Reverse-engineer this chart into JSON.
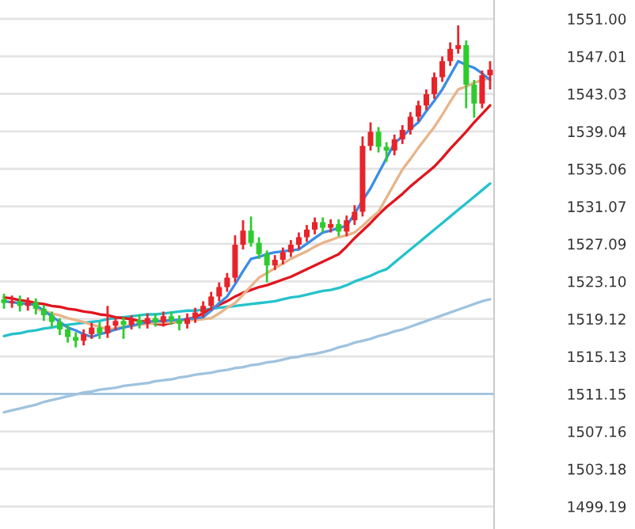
{
  "chart_data": {
    "type": "candlestick",
    "categories": [
      null,
      null,
      null,
      null,
      null,
      null,
      null,
      null,
      null,
      null,
      null,
      null,
      null,
      null,
      null,
      null,
      null,
      null,
      null,
      null,
      null,
      null,
      null,
      null,
      null,
      null,
      null,
      null,
      null,
      null,
      null,
      null,
      null,
      null,
      null,
      null,
      null,
      null,
      null,
      null,
      null,
      null,
      null,
      null,
      null,
      null,
      null,
      null,
      null,
      null,
      null,
      null,
      null,
      null,
      null,
      null,
      null,
      null,
      null,
      null,
      null,
      null
    ],
    "ohlc": [
      [
        1521.2,
        1521.8,
        1520.2,
        1520.8
      ],
      [
        1520.8,
        1521.6,
        1520.3,
        1521.0
      ],
      [
        1521.0,
        1521.6,
        1519.9,
        1520.5
      ],
      [
        1520.5,
        1521.4,
        1520.0,
        1520.9
      ],
      [
        1520.9,
        1521.3,
        1519.6,
        1520.2
      ],
      [
        1520.2,
        1520.6,
        1518.9,
        1519.5
      ],
      [
        1519.5,
        1519.9,
        1518.2,
        1518.8
      ],
      [
        1518.8,
        1519.2,
        1517.4,
        1518.0
      ],
      [
        1518.0,
        1518.5,
        1516.6,
        1517.2
      ],
      [
        1517.2,
        1517.7,
        1516.1,
        1516.8
      ],
      [
        1516.8,
        1518.0,
        1516.3,
        1517.5
      ],
      [
        1517.5,
        1518.7,
        1517.0,
        1518.2
      ],
      [
        1518.2,
        1518.8,
        1517.0,
        1517.6
      ],
      [
        1517.6,
        1520.5,
        1517.1,
        1518.4
      ],
      [
        1518.4,
        1519.4,
        1517.9,
        1518.9
      ],
      [
        1518.9,
        1519.3,
        1517.0,
        1518.5
      ],
      [
        1518.5,
        1519.5,
        1518.0,
        1519.0
      ],
      [
        1519.0,
        1519.6,
        1518.1,
        1518.6
      ],
      [
        1518.6,
        1519.7,
        1518.1,
        1519.2
      ],
      [
        1519.2,
        1519.7,
        1518.3,
        1518.8
      ],
      [
        1518.8,
        1519.9,
        1518.3,
        1519.4
      ],
      [
        1519.4,
        1519.9,
        1518.5,
        1519.0
      ],
      [
        1519.0,
        1519.5,
        1517.9,
        1518.6
      ],
      [
        1518.6,
        1519.7,
        1518.1,
        1519.2
      ],
      [
        1519.2,
        1520.3,
        1518.7,
        1519.8
      ],
      [
        1519.8,
        1521.0,
        1519.3,
        1520.5
      ],
      [
        1520.5,
        1522.0,
        1520.0,
        1521.5
      ],
      [
        1521.5,
        1523.0,
        1521.0,
        1522.5
      ],
      [
        1522.5,
        1524.0,
        1522.0,
        1523.5
      ],
      [
        1523.5,
        1528.0,
        1523.0,
        1527.0
      ],
      [
        1527.0,
        1529.6,
        1526.5,
        1528.5
      ],
      [
        1528.5,
        1530.0,
        1526.8,
        1527.2
      ],
      [
        1527.2,
        1527.8,
        1525.5,
        1526.0
      ],
      [
        1526.0,
        1526.4,
        1523.0,
        1524.8
      ],
      [
        1524.8,
        1525.9,
        1524.3,
        1525.4
      ],
      [
        1525.4,
        1526.7,
        1524.9,
        1526.2
      ],
      [
        1526.2,
        1527.5,
        1525.7,
        1527.0
      ],
      [
        1527.0,
        1528.3,
        1526.5,
        1527.8
      ],
      [
        1527.8,
        1529.1,
        1527.3,
        1528.6
      ],
      [
        1528.6,
        1529.9,
        1528.1,
        1529.4
      ],
      [
        1529.4,
        1529.9,
        1528.3,
        1528.8
      ],
      [
        1528.8,
        1529.7,
        1528.3,
        1529.2
      ],
      [
        1529.2,
        1529.7,
        1527.9,
        1528.4
      ],
      [
        1528.4,
        1530.1,
        1527.9,
        1529.6
      ],
      [
        1529.6,
        1531.2,
        1529.1,
        1530.5
      ],
      [
        1530.5,
        1538.5,
        1530.0,
        1537.5
      ],
      [
        1537.5,
        1540.0,
        1537.0,
        1539.0
      ],
      [
        1539.0,
        1539.5,
        1536.8,
        1537.4
      ],
      [
        1537.4,
        1537.9,
        1535.8,
        1537.0
      ],
      [
        1537.0,
        1538.7,
        1536.5,
        1538.2
      ],
      [
        1538.2,
        1539.7,
        1537.7,
        1539.2
      ],
      [
        1539.2,
        1541.1,
        1538.7,
        1540.6
      ],
      [
        1540.6,
        1542.3,
        1540.1,
        1541.8
      ],
      [
        1541.8,
        1543.5,
        1541.3,
        1543.0
      ],
      [
        1543.0,
        1545.3,
        1542.5,
        1544.8
      ],
      [
        1544.8,
        1547.0,
        1544.3,
        1546.5
      ],
      [
        1546.5,
        1548.5,
        1546.0,
        1547.8
      ],
      [
        1547.8,
        1550.3,
        1547.3,
        1548.2
      ],
      [
        1548.2,
        1548.7,
        1541.5,
        1544.0
      ],
      [
        1544.0,
        1544.5,
        1540.5,
        1542.0
      ],
      [
        1542.0,
        1545.5,
        1541.5,
        1545.0
      ],
      [
        1545.0,
        1546.5,
        1543.5,
        1545.6
      ]
    ],
    "colors": [
      "#2dcc2d",
      "#e8232a",
      "#2dcc2d",
      "#e8232a",
      "#2dcc2d",
      "#2dcc2d",
      "#2dcc2d",
      "#2dcc2d",
      "#2dcc2d",
      "#2dcc2d",
      "#e8232a",
      "#e8232a",
      "#2dcc2d",
      "#e8232a",
      "#e8232a",
      "#2dcc2d",
      "#e8232a",
      "#2dcc2d",
      "#e8232a",
      "#2dcc2d",
      "#e8232a",
      "#2dcc2d",
      "#2dcc2d",
      "#e8232a",
      "#e8232a",
      "#e8232a",
      "#e8232a",
      "#e8232a",
      "#e8232a",
      "#e8232a",
      "#e8232a",
      "#2dcc2d",
      "#2dcc2d",
      "#2dcc2d",
      "#e8232a",
      "#e8232a",
      "#e8232a",
      "#e8232a",
      "#e8232a",
      "#e8232a",
      "#2dcc2d",
      "#e8232a",
      "#2dcc2d",
      "#e8232a",
      "#e8232a",
      "#e8232a",
      "#e8232a",
      "#2dcc2d",
      "#2dcc2d",
      "#e8232a",
      "#e8232a",
      "#e8232a",
      "#e8232a",
      "#e8232a",
      "#e8232a",
      "#e8232a",
      "#e8232a",
      "#e8232a",
      "#2dcc2d",
      "#2dcc2d",
      "#e8232a",
      "#e8232a"
    ],
    "series": [
      {
        "type": "line",
        "color": "#9fc3de",
        "values": [
          1509.2,
          1509.4,
          1509.6,
          1509.8,
          1510.0,
          1510.3,
          1510.5,
          1510.7,
          1510.9,
          1511.1,
          1511.3,
          1511.4,
          1511.6,
          1511.7,
          1511.8,
          1512.0,
          1512.1,
          1512.2,
          1512.3,
          1512.5,
          1512.6,
          1512.7,
          1512.9,
          1513.0,
          1513.2,
          1513.3,
          1513.4,
          1513.6,
          1513.7,
          1513.9,
          1514.0,
          1514.2,
          1514.3,
          1514.5,
          1514.6,
          1514.8,
          1515.0,
          1515.1,
          1515.3,
          1515.4,
          1515.6,
          1515.8,
          1516.1,
          1516.3,
          1516.6,
          1516.8,
          1517.0,
          1517.3,
          1517.5,
          1517.8,
          1518.0,
          1518.3,
          1518.6,
          1518.9,
          1519.2,
          1519.5,
          1519.8,
          1520.1,
          1520.4,
          1520.7,
          1521.0,
          1521.2
        ]
      },
      {
        "type": "line",
        "color": "#25c2cc",
        "values": [
          1517.3,
          1517.5,
          1517.6,
          1517.8,
          1517.9,
          1518.1,
          1518.2,
          1518.4,
          1518.5,
          1518.6,
          1518.7,
          1518.8,
          1518.9,
          1519.1,
          1519.2,
          1519.3,
          1519.4,
          1519.5,
          1519.6,
          1519.6,
          1519.7,
          1519.8,
          1519.9,
          1520.0,
          1520.0,
          1520.1,
          1520.2,
          1520.3,
          1520.4,
          1520.5,
          1520.6,
          1520.7,
          1520.8,
          1520.9,
          1521.0,
          1521.2,
          1521.4,
          1521.5,
          1521.7,
          1521.9,
          1522.1,
          1522.2,
          1522.4,
          1522.7,
          1523.1,
          1523.4,
          1523.7,
          1524.1,
          1524.4,
          1525.1,
          1525.8,
          1526.5,
          1527.2,
          1527.9,
          1528.6,
          1529.3,
          1530.0,
          1530.7,
          1531.4,
          1532.1,
          1532.8,
          1533.5
        ]
      },
      {
        "type": "line",
        "color": "#e0151e",
        "values": [
          1521.4,
          1521.3,
          1521.1,
          1521.0,
          1520.8,
          1520.7,
          1520.5,
          1520.4,
          1520.2,
          1520.1,
          1519.9,
          1519.8,
          1519.6,
          1519.5,
          1519.3,
          1519.2,
          1519.1,
          1518.9,
          1518.8,
          1518.6,
          1518.5,
          1518.7,
          1518.9,
          1519.1,
          1519.3,
          1519.7,
          1520.2,
          1520.6,
          1521.0,
          1521.5,
          1521.9,
          1522.2,
          1522.5,
          1522.7,
          1523.0,
          1523.3,
          1523.6,
          1524.0,
          1524.4,
          1524.8,
          1525.2,
          1525.6,
          1526.0,
          1526.8,
          1527.7,
          1528.5,
          1529.3,
          1530.2,
          1531.0,
          1531.7,
          1532.4,
          1533.2,
          1533.9,
          1534.6,
          1535.3,
          1536.2,
          1537.2,
          1538.1,
          1539.0,
          1540.0,
          1540.9,
          1541.8
        ]
      },
      {
        "type": "line",
        "color": "#e8b48a",
        "values": [
          null,
          null,
          null,
          null,
          1520.2,
          1520.0,
          1519.7,
          1519.5,
          1519.2,
          1519.0,
          1518.8,
          1518.5,
          1518.3,
          1518.0,
          1518.1,
          1518.3,
          1518.4,
          1518.5,
          1518.6,
          1518.7,
          1518.7,
          1518.8,
          1518.9,
          1519.0,
          1519.0,
          1519.1,
          1519.2,
          1519.7,
          1520.3,
          1520.8,
          1521.7,
          1522.6,
          1523.5,
          1524.0,
          1524.5,
          1525.0,
          1525.5,
          1525.9,
          1526.3,
          1526.8,
          1527.2,
          1527.5,
          1527.8,
          1528.0,
          1528.3,
          1529.0,
          1529.8,
          1530.5,
          1532.0,
          1533.5,
          1535.0,
          1536.1,
          1537.3,
          1538.4,
          1539.5,
          1540.8,
          1542.2,
          1543.5,
          1543.8,
          1544.2,
          1544.5,
          1544.7
        ]
      },
      {
        "type": "line",
        "color": "#3a8ee6",
        "values": [
          1521.0,
          1520.9,
          1520.8,
          1520.7,
          1520.6,
          1520.0,
          1519.4,
          1518.8,
          1518.2,
          1517.9,
          1517.5,
          1517.2,
          1517.5,
          1517.7,
          1518.0,
          1518.2,
          1518.4,
          1518.6,
          1518.8,
          1518.9,
          1518.9,
          1519.0,
          1519.0,
          1519.1,
          1519.2,
          1519.3,
          1520.0,
          1520.8,
          1521.5,
          1522.8,
          1524.2,
          1525.5,
          1525.7,
          1526.0,
          1526.2,
          1526.3,
          1526.4,
          1526.5,
          1527.1,
          1527.7,
          1528.3,
          1528.5,
          1528.8,
          1529.0,
          1530.3,
          1531.7,
          1533.0,
          1534.6,
          1536.2,
          1537.8,
          1538.5,
          1539.3,
          1540.0,
          1541.2,
          1542.3,
          1543.5,
          1545.0,
          1546.5,
          1546.1,
          1545.8,
          1545.2,
          1544.5
        ]
      }
    ],
    "ref_lines": [
      {
        "axis": "y",
        "value": 1511.15,
        "color": "#9fc3de"
      }
    ],
    "ylim": [
      1496.8,
      1553.0
    ],
    "yticks": [
      {
        "value": 1551.0,
        "label": "1551.00"
      },
      {
        "value": 1547.01,
        "label": "1547.01"
      },
      {
        "value": 1543.03,
        "label": "1543.03"
      },
      {
        "value": 1539.04,
        "label": "1539.04"
      },
      {
        "value": 1535.06,
        "label": "1535.06"
      },
      {
        "value": 1531.07,
        "label": "1531.07"
      },
      {
        "value": 1527.09,
        "label": "1527.09"
      },
      {
        "value": 1523.1,
        "label": "1523.10"
      },
      {
        "value": 1519.12,
        "label": "1519.12"
      },
      {
        "value": 1515.13,
        "label": "1515.13"
      },
      {
        "value": 1511.15,
        "label": "1511.15"
      },
      {
        "value": 1507.16,
        "label": "1507.16"
      },
      {
        "value": 1503.18,
        "label": "1503.18"
      },
      {
        "value": 1499.19,
        "label": "1499.19"
      }
    ],
    "grid": "y",
    "tick_labels": "y"
  }
}
